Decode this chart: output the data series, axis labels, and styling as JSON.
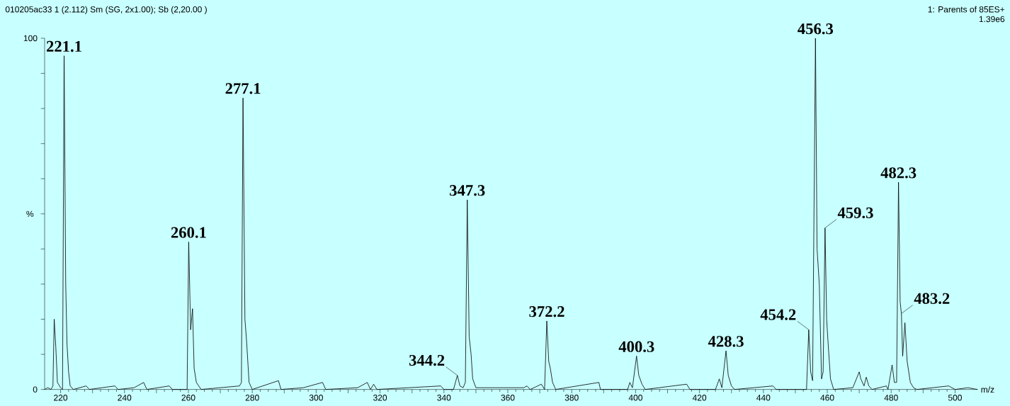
{
  "chart_data": {
    "type": "line",
    "title": "010205ac33 1 (2.112) Sm (SG, 2x1.00); Sb (2,20.00 )",
    "xlabel": "m/z",
    "ylabel": "%",
    "xlim": [
      215,
      507
    ],
    "ylim": [
      0,
      100
    ],
    "xticks": [
      220,
      {
        "value": 230,
        "label": null
      },
      240,
      {
        "value": 250,
        "label": null
      },
      260,
      {
        "value": 270,
        "label": null
      },
      280,
      {
        "value": 290,
        "label": null
      },
      300,
      {
        "value": 310,
        "label": null
      },
      320,
      {
        "value": 330,
        "label": null
      },
      340,
      {
        "value": 350,
        "label": null
      },
      360,
      {
        "value": 370,
        "label": null
      },
      380,
      {
        "value": 390,
        "label": null
      },
      400,
      {
        "value": 410,
        "label": null
      },
      420,
      {
        "value": 430,
        "label": null
      },
      440,
      {
        "value": 450,
        "label": null
      },
      460,
      {
        "value": 470,
        "label": null
      },
      480,
      {
        "value": 490,
        "label": null
      },
      500
    ],
    "yticks": [
      0,
      {
        "value": 10,
        "label": null
      },
      {
        "value": 20,
        "label": null
      },
      {
        "value": 30,
        "label": null
      },
      {
        "value": 40,
        "label": null
      },
      {
        "value": 50,
        "label": null
      },
      {
        "value": 60,
        "label": null
      },
      {
        "value": 70,
        "label": null
      },
      {
        "value": 80,
        "label": null
      },
      {
        "value": 90,
        "label": null
      },
      100
    ],
    "grid": false,
    "marker": "none",
    "line_style": "solid",
    "series": [
      {
        "color": "#000000",
        "x": [
          215,
          216,
          217,
          217.6,
          218,
          218.5,
          219,
          220,
          220.6,
          221.1,
          221.6,
          222,
          222.5,
          223,
          224,
          228,
          229,
          237,
          238,
          243,
          246,
          247,
          254,
          255,
          259.6,
          260.1,
          260.7,
          261.3,
          261.8,
          262.5,
          264,
          276,
          276.6,
          277.1,
          277.7,
          278.2,
          279,
          280,
          288.2,
          289,
          296,
          302,
          303,
          313,
          316,
          317,
          318,
          319,
          339,
          340,
          343,
          344.2,
          345,
          346,
          346.7,
          347.3,
          347.9,
          348.5,
          349,
          350,
          365,
          366,
          367,
          370.5,
          371.5,
          372.2,
          372.8,
          373.3,
          374,
          375,
          388.5,
          389,
          397.5,
          398.2,
          399,
          400.3,
          401,
          402,
          403,
          416,
          417,
          425,
          426.2,
          427,
          428.3,
          429,
          430,
          431,
          443,
          444,
          453.5,
          454.2,
          454.8,
          455.4,
          456.3,
          456.8,
          457.5,
          458.2,
          458.7,
          459.3,
          459.8,
          460.2,
          461,
          462,
          468,
          470,
          470.5,
          471.5,
          472.2,
          473,
          474,
          478.5,
          479,
          480.3,
          481,
          481.7,
          482.3,
          482.8,
          483.2,
          483.6,
          484.3,
          485,
          486,
          487,
          488,
          498,
          499,
          500,
          504,
          507
        ],
        "values": [
          0,
          0.5,
          0,
          1,
          20,
          12,
          2,
          0.5,
          0,
          95,
          30,
          13,
          5,
          1,
          0,
          1,
          0,
          1,
          0,
          0.5,
          2,
          0,
          1,
          0,
          0,
          42,
          17,
          23,
          6,
          2,
          0,
          1,
          2,
          83,
          20,
          14,
          2,
          0,
          2.5,
          0,
          0.5,
          2,
          0,
          0.5,
          2,
          0,
          1.5,
          0,
          1,
          0,
          0,
          4,
          1,
          0.5,
          2,
          54,
          15,
          10,
          3,
          0.5,
          0.5,
          1,
          0,
          1.5,
          0,
          19.5,
          8,
          6,
          2,
          0,
          2,
          0,
          0,
          2,
          0.5,
          9.5,
          4,
          1.5,
          0,
          1.5,
          0,
          0,
          3,
          0.5,
          11,
          4,
          1,
          0,
          1,
          0,
          0,
          17,
          5,
          2.5,
          100,
          40,
          30,
          3,
          5,
          46,
          20,
          14,
          3,
          0,
          0.5,
          5,
          3,
          1,
          3.5,
          1,
          0,
          1,
          0,
          7,
          2,
          2,
          59,
          25,
          21.6,
          9.5,
          19,
          8,
          2,
          0.5,
          0,
          1,
          0.5,
          0,
          0.5,
          0
        ]
      }
    ],
    "annotations": [
      "1: Parents of 85ES+",
      "1.39e6",
      {
        "text": "221.1",
        "x": 221.1,
        "y": 95
      },
      {
        "text": "260.1",
        "x": 260.1,
        "y": 42
      },
      {
        "text": "277.1",
        "x": 277.1,
        "y": 83
      },
      {
        "text": "344.2",
        "x": 344.2,
        "y": 4
      },
      {
        "text": "347.3",
        "x": 347.3,
        "y": 54
      },
      {
        "text": "372.2",
        "x": 372.2,
        "y": 19.5
      },
      {
        "text": "400.3",
        "x": 400.3,
        "y": 9.5
      },
      {
        "text": "428.3",
        "x": 428.3,
        "y": 11
      },
      {
        "text": "454.2",
        "x": 454.2,
        "y": 17
      },
      {
        "text": "456.3",
        "x": 456.3,
        "y": 100
      },
      {
        "text": "459.3",
        "x": 459.3,
        "y": 46
      },
      {
        "text": "482.3",
        "x": 482.3,
        "y": 59
      },
      {
        "text": "483.2",
        "x": 483.2,
        "y": 21.6
      }
    ]
  }
}
